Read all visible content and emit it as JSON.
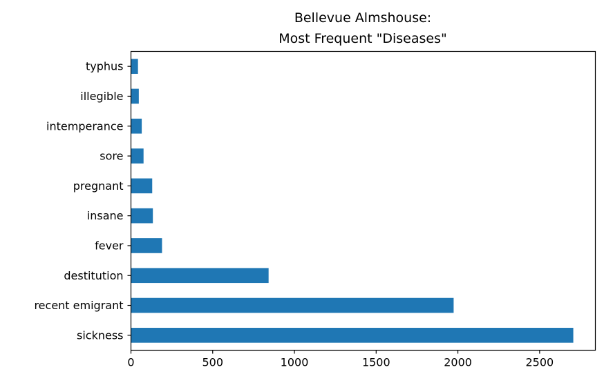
{
  "chart_data": {
    "type": "bar",
    "orientation": "horizontal",
    "title_lines": [
      "Bellevue Almshouse:",
      "Most Frequent \"Diseases\""
    ],
    "xlabel": "",
    "ylabel": "",
    "categories": [
      "sickness",
      "recent emigrant",
      "destitution",
      "fever",
      "insane",
      "pregnant",
      "sore",
      "intemperance",
      "illegible",
      "typhus"
    ],
    "values": [
      2706,
      1974,
      842,
      190,
      134,
      130,
      77,
      66,
      48,
      43
    ],
    "xlim": [
      0,
      2841
    ],
    "xticks": [
      0,
      500,
      1000,
      1500,
      2000,
      2500
    ],
    "xtick_labels": [
      "0",
      "500",
      "1000",
      "1500",
      "2000",
      "2500"
    ],
    "bar_color": "#1f77b4",
    "grid": false,
    "legend": "none"
  }
}
